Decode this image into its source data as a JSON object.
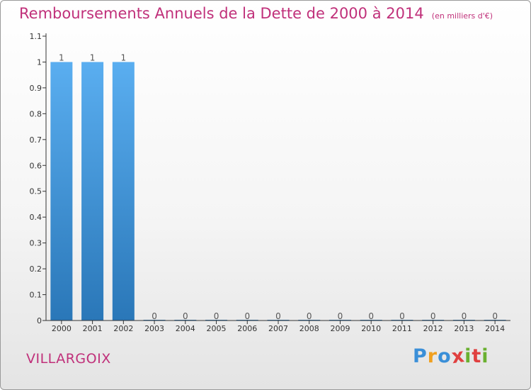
{
  "chart_data": {
    "type": "bar",
    "title": "Remboursements Annuels de la Dette de 2000 à 2014",
    "unit_label": "(en milliers d'€)",
    "categories": [
      "2000",
      "2001",
      "2002",
      "2003",
      "2004",
      "2005",
      "2006",
      "2007",
      "2008",
      "2009",
      "2010",
      "2011",
      "2012",
      "2013",
      "2014"
    ],
    "values": [
      1,
      1,
      1,
      0,
      0,
      0,
      0,
      0,
      0,
      0,
      0,
      0,
      0,
      0,
      0
    ],
    "data_labels": [
      "1",
      "1",
      "1",
      "0",
      "0",
      "0",
      "0",
      "0",
      "0",
      "0",
      "0",
      "0",
      "0",
      "0",
      "0"
    ],
    "y_ticks": [
      "0",
      "0.1",
      "0.2",
      "0.3",
      "0.4",
      "0.5",
      "0.6",
      "0.7",
      "0.8",
      "0.9",
      "1",
      "1.1"
    ],
    "ylim": [
      0,
      1.1
    ],
    "xlabel": "",
    "ylabel": "",
    "grid": false,
    "colors": {
      "bar_top": "#5aaef0",
      "bar_bottom": "#2a77b8",
      "title": "#c0307a",
      "axis": "#333333"
    }
  },
  "commune": "VILLARGOIX",
  "logo": {
    "letters": [
      "P",
      "r",
      "o",
      "x",
      "i",
      "t",
      "i"
    ],
    "colors": [
      "#3a8fd8",
      "#f0a020",
      "#3a8fd8",
      "#e04040",
      "#6ab030",
      "#e04040",
      "#6ab030"
    ]
  }
}
